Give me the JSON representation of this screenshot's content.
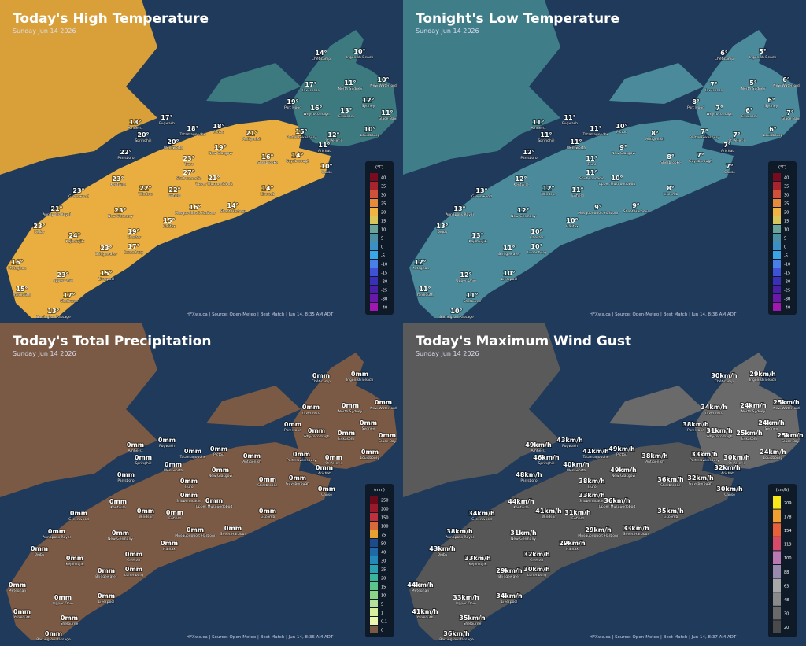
{
  "places": [
    "Chéticamp",
    "Ingonish Beach",
    "Inverness",
    "North Sydney",
    "New Waterford",
    "Port Hood",
    "Whycocomagh",
    "Sydney",
    "Eskasoni",
    "Glace Bay",
    "Louisbourg",
    "Port Hawkesbury",
    "St Peter's",
    "Arichat",
    "Pugwash",
    "Amherst",
    "Tatamagouche",
    "Pictou",
    "Antigonish",
    "Springhill",
    "Wentworth",
    "New Glasgow",
    "Guysborough",
    "Canso",
    "Parrsboro",
    "Truro",
    "Sherbrooke",
    "Kentville",
    "Shubenacadie",
    "Upper Musquodoboit",
    "Liscomb",
    "Greenwood",
    "Windsor",
    "Enfield",
    "Musquodoboit Harbour",
    "Sheet Harbour",
    "Halifax",
    "Annapolis Royal",
    "New Germany",
    "Chester",
    "Digby",
    "Kejimkujik",
    "Bridgewater",
    "Lunenburg",
    "Meteghan",
    "Upper Ohio",
    "Liverpool",
    "Yarmouth",
    "Shelburne",
    "Barrington Passage"
  ],
  "panels": [
    {
      "title": "Today's High Temperature",
      "subtitle": "Sunday Jun 14 2026",
      "credit": "HFXwx.ca | Source: Open-Meteo | Best Match | Jun 14, 8:35 AM ADT",
      "unit": "(°C)",
      "legend": [
        {
          "label": "40",
          "color": "#7a0a1e"
        },
        {
          "label": "35",
          "color": "#a8242c"
        },
        {
          "label": "30",
          "color": "#d0503a"
        },
        {
          "label": "25",
          "color": "#e98a3a"
        },
        {
          "label": "20",
          "color": "#efb442"
        },
        {
          "label": "15",
          "color": "#d9c65a"
        },
        {
          "label": "10",
          "color": "#6aa39a"
        },
        {
          "label": "5",
          "color": "#4a8fa3"
        },
        {
          "label": "0",
          "color": "#3b8fc4"
        },
        {
          "label": "-5",
          "color": "#3aa6e6"
        },
        {
          "label": "-10",
          "color": "#4a7ee8"
        },
        {
          "label": "-15",
          "color": "#3f52d6"
        },
        {
          "label": "-20",
          "color": "#3a2fb8"
        },
        {
          "label": "-25",
          "color": "#4a1fa8"
        },
        {
          "label": "-30",
          "color": "#6a18a8"
        },
        {
          "label": "-40",
          "color": "#a018b0"
        }
      ],
      "values": [
        "14°",
        "10°",
        "17°",
        "11°",
        "10°",
        "19°",
        "16°",
        "12°",
        "13°",
        "11°",
        "10°",
        "15°",
        "12°",
        "11°",
        "17°",
        "18°",
        "18°",
        "18°",
        "21°",
        "20°",
        "20°",
        "19°",
        "14°",
        "10°",
        "22°",
        "23°",
        "16°",
        "23°",
        "27°",
        "21°",
        "14°",
        "23°",
        "22°",
        "22°",
        "16°",
        "14°",
        "15°",
        "21°",
        "23°",
        "19°",
        "23°",
        "24°",
        "23°",
        "17°",
        "16°",
        "23°",
        "15°",
        "15°",
        "17°",
        "13°"
      ]
    },
    {
      "title": "Tonight's Low Temperature",
      "subtitle": "Sunday Jun 14 2026",
      "credit": "HFXwx.ca | Source: Open-Meteo | Best Match | Jun 14, 8:36 AM ADT",
      "unit": "(°C)",
      "legend": [
        {
          "label": "40",
          "color": "#7a0a1e"
        },
        {
          "label": "35",
          "color": "#a8242c"
        },
        {
          "label": "30",
          "color": "#d0503a"
        },
        {
          "label": "25",
          "color": "#e98a3a"
        },
        {
          "label": "20",
          "color": "#efb442"
        },
        {
          "label": "15",
          "color": "#d9c65a"
        },
        {
          "label": "10",
          "color": "#6aa39a"
        },
        {
          "label": "5",
          "color": "#4a8fa3"
        },
        {
          "label": "0",
          "color": "#3b8fc4"
        },
        {
          "label": "-5",
          "color": "#3aa6e6"
        },
        {
          "label": "-10",
          "color": "#4a7ee8"
        },
        {
          "label": "-15",
          "color": "#3f52d6"
        },
        {
          "label": "-20",
          "color": "#3a2fb8"
        },
        {
          "label": "-25",
          "color": "#4a1fa8"
        },
        {
          "label": "-30",
          "color": "#6a18a8"
        },
        {
          "label": "-40",
          "color": "#a018b0"
        }
      ],
      "values": [
        "6°",
        "5°",
        "7°",
        "5°",
        "6°",
        "8°",
        "7°",
        "6°",
        "6°",
        "7°",
        "6°",
        "7°",
        "7°",
        "7°",
        "11°",
        "11°",
        "11°",
        "10°",
        "8°",
        "11°",
        "11°",
        "9°",
        "7°",
        "7°",
        "12°",
        "11°",
        "8°",
        "12°",
        "11°",
        "10°",
        "8°",
        "13°",
        "12°",
        "11°",
        "9°",
        "9°",
        "10°",
        "13°",
        "12°",
        "10°",
        "13°",
        "13°",
        "11°",
        "10°",
        "12°",
        "12°",
        "10°",
        "11°",
        "11°",
        "10°"
      ]
    },
    {
      "title": "Today's Total Precipitation",
      "subtitle": "Sunday Jun 14 2026",
      "credit": "HFXwx.ca | Source: Open-Meteo | Best Match | Jun 14, 8:36 AM ADT",
      "unit": "(mm)",
      "legend": [
        {
          "label": "250",
          "color": "#6a0a1a"
        },
        {
          "label": "200",
          "color": "#9a1a2a"
        },
        {
          "label": "150",
          "color": "#c0303a"
        },
        {
          "label": "100",
          "color": "#d86a3a"
        },
        {
          "label": "75",
          "color": "#e8a030"
        },
        {
          "label": "50",
          "color": "#1c4a8a"
        },
        {
          "label": "40",
          "color": "#1f6aa6"
        },
        {
          "label": "30",
          "color": "#2488b8"
        },
        {
          "label": "25",
          "color": "#2aa0b0"
        },
        {
          "label": "20",
          "color": "#3ab49a"
        },
        {
          "label": "15",
          "color": "#5ac48a"
        },
        {
          "label": "10",
          "color": "#8ad48a"
        },
        {
          "label": "5",
          "color": "#b4e29a"
        },
        {
          "label": "1",
          "color": "#d8ef9e"
        },
        {
          "label": "0.1",
          "color": "#ecf6b0"
        },
        {
          "label": "0",
          "color": "#7a5a44"
        }
      ],
      "values": [
        "0mm",
        "0mm",
        "0mm",
        "0mm",
        "0mm",
        "0mm",
        "0mm",
        "0mm",
        "0mm",
        "0mm",
        "0mm",
        "0mm",
        "0mm",
        "0mm",
        "0mm",
        "0mm",
        "0mm",
        "0mm",
        "0mm",
        "0mm",
        "0mm",
        "0mm",
        "0mm",
        "0mm",
        "0mm",
        "0mm",
        "0mm",
        "0mm",
        "0mm",
        "0mm",
        "0mm",
        "0mm",
        "0mm",
        "0mm",
        "0mm",
        "0mm",
        "0mm",
        "0mm",
        "0mm",
        "0mm",
        "0mm",
        "0mm",
        "0mm",
        "0mm",
        "0mm",
        "0mm",
        "0mm",
        "0mm",
        "0mm",
        "0mm"
      ]
    },
    {
      "title": "Today's Maximum Wind Gust",
      "subtitle": "Sunday Jun 14 2026",
      "credit": "HFXwx.ca | Source: Open-Meteo | Best Match | Jun 14, 8:37 AM ADT",
      "unit": "(km/h)",
      "legend": [
        {
          "label": "209",
          "color": "#f8e81a"
        },
        {
          "label": "178",
          "color": "#f0a030"
        },
        {
          "label": "154",
          "color": "#e8603a"
        },
        {
          "label": "119",
          "color": "#d84a6a"
        },
        {
          "label": "100",
          "color": "#b87ab0"
        },
        {
          "label": "88",
          "color": "#9a8ab0"
        },
        {
          "label": "63",
          "color": "#a8a8a8"
        },
        {
          "label": "48",
          "color": "#8a8a8a"
        },
        {
          "label": "30",
          "color": "#6a6a6a"
        },
        {
          "label": "20",
          "color": "#4a4a4a"
        }
      ],
      "values": [
        "30km/h",
        "29km/h",
        "34km/h",
        "24km/h",
        "25km/h",
        "38km/h",
        "31km/h",
        "24km/h",
        "25km/h",
        "25km/h",
        "24km/h",
        "33km/h",
        "30km/h",
        "32km/h",
        "43km/h",
        "49km/h",
        "41km/h",
        "49km/h",
        "38km/h",
        "46km/h",
        "40km/h",
        "49km/h",
        "32km/h",
        "30km/h",
        "48km/h",
        "38km/h",
        "36km/h",
        "44km/h",
        "33km/h",
        "36km/h",
        "35km/h",
        "34km/h",
        "41km/h",
        "31km/h",
        "29km/h",
        "33km/h",
        "29km/h",
        "38km/h",
        "31km/h",
        "32km/h",
        "43km/h",
        "33km/h",
        "29km/h",
        "30km/h",
        "44km/h",
        "33km/h",
        "34km/h",
        "41km/h",
        "35km/h",
        "36km/h"
      ]
    }
  ]
}
